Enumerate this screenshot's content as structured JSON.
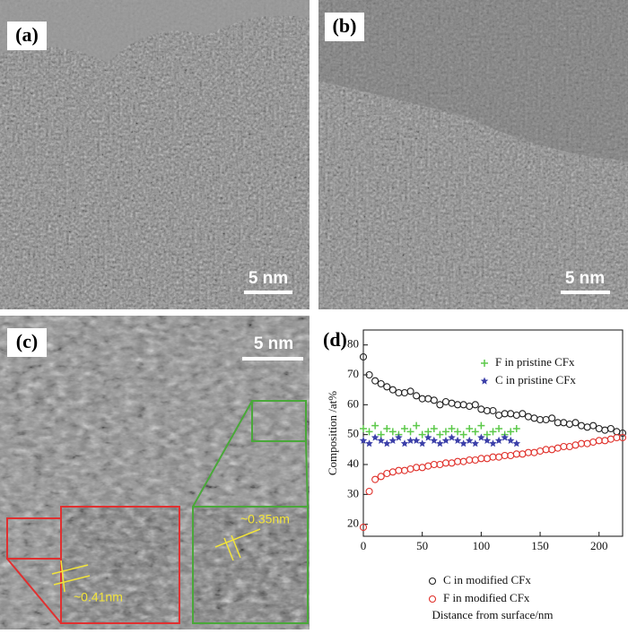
{
  "panels": [
    {
      "label": "(a)",
      "scale_bar": "5 nm"
    },
    {
      "label": "(b)",
      "scale_bar": "5 nm"
    },
    {
      "label": "(c)",
      "scale_bar": "5 nm",
      "annotations": [
        "~0.41nm",
        "~0.35nm"
      ]
    }
  ],
  "chart_data": {
    "type": "scatter",
    "label": "(d)",
    "xlabel": "Distance from surface/nm",
    "ylabel": "Composition /at%",
    "xlim": [
      0,
      220
    ],
    "ylim": [
      16,
      85
    ],
    "xticks": [
      0,
      50,
      100,
      150,
      200
    ],
    "yticks": [
      20,
      30,
      40,
      50,
      60,
      70,
      80
    ],
    "series": [
      {
        "name": "F in pristine CFx",
        "color": "#5cc94a",
        "marker": "plus",
        "legend": "upper",
        "x": [
          0,
          5,
          10,
          15,
          20,
          25,
          30,
          35,
          40,
          45,
          50,
          55,
          60,
          65,
          70,
          75,
          80,
          85,
          90,
          95,
          100,
          105,
          110,
          115,
          120,
          125,
          130
        ],
        "values": [
          52,
          51,
          53,
          50,
          52,
          51,
          50,
          52,
          51,
          53,
          50,
          51,
          52,
          50,
          51,
          52,
          51,
          50,
          52,
          51,
          53,
          50,
          51,
          52,
          50,
          51,
          52
        ]
      },
      {
        "name": "C in pristine CFx",
        "color": "#3b3fa8",
        "marker": "star",
        "legend": "upper",
        "x": [
          0,
          5,
          10,
          15,
          20,
          25,
          30,
          35,
          40,
          45,
          50,
          55,
          60,
          65,
          70,
          75,
          80,
          85,
          90,
          95,
          100,
          105,
          110,
          115,
          120,
          125,
          130
        ],
        "values": [
          48,
          47,
          49,
          48,
          47,
          48,
          49,
          47,
          48,
          48,
          47,
          49,
          48,
          47,
          48,
          49,
          48,
          47,
          48,
          47,
          49,
          48,
          47,
          48,
          49,
          48,
          47
        ]
      },
      {
        "name": "C in modified CFx",
        "color": "#222222",
        "marker": "circle",
        "legend": "lower",
        "x": [
          0,
          5,
          10,
          15,
          20,
          25,
          30,
          35,
          40,
          45,
          50,
          55,
          60,
          65,
          70,
          75,
          80,
          85,
          90,
          95,
          100,
          105,
          110,
          115,
          120,
          125,
          130,
          135,
          140,
          145,
          150,
          155,
          160,
          165,
          170,
          175,
          180,
          185,
          190,
          195,
          200,
          205,
          210,
          215,
          220
        ],
        "values": [
          76,
          70,
          68,
          67,
          66,
          65,
          64,
          64,
          64.5,
          63,
          62,
          62,
          61.5,
          60,
          61,
          60.5,
          60,
          60,
          59.5,
          60,
          58.5,
          58,
          58,
          56.5,
          57,
          57,
          56.5,
          57,
          56,
          55.5,
          55,
          55,
          55.5,
          54,
          54,
          53.5,
          54,
          53,
          52.5,
          53,
          52,
          51.5,
          52,
          51,
          50.5
        ]
      },
      {
        "name": "F in modified CFx",
        "color": "#e0302a",
        "marker": "circle",
        "legend": "lower",
        "x": [
          0,
          5,
          10,
          15,
          20,
          25,
          30,
          35,
          40,
          45,
          50,
          55,
          60,
          65,
          70,
          75,
          80,
          85,
          90,
          95,
          100,
          105,
          110,
          115,
          120,
          125,
          130,
          135,
          140,
          145,
          150,
          155,
          160,
          165,
          170,
          175,
          180,
          185,
          190,
          195,
          200,
          205,
          210,
          215,
          220
        ],
        "values": [
          19,
          31,
          35,
          36,
          37,
          37.5,
          38,
          38,
          38.5,
          39,
          39,
          39.5,
          40,
          40,
          40.5,
          40.5,
          41,
          41,
          41.5,
          41.5,
          42,
          42,
          42.5,
          42.5,
          43,
          43,
          43.5,
          43.5,
          44,
          44,
          44.5,
          45,
          45,
          45.5,
          46,
          46,
          46.5,
          47,
          47,
          47.5,
          48,
          48,
          48.5,
          49,
          49
        ]
      }
    ]
  }
}
